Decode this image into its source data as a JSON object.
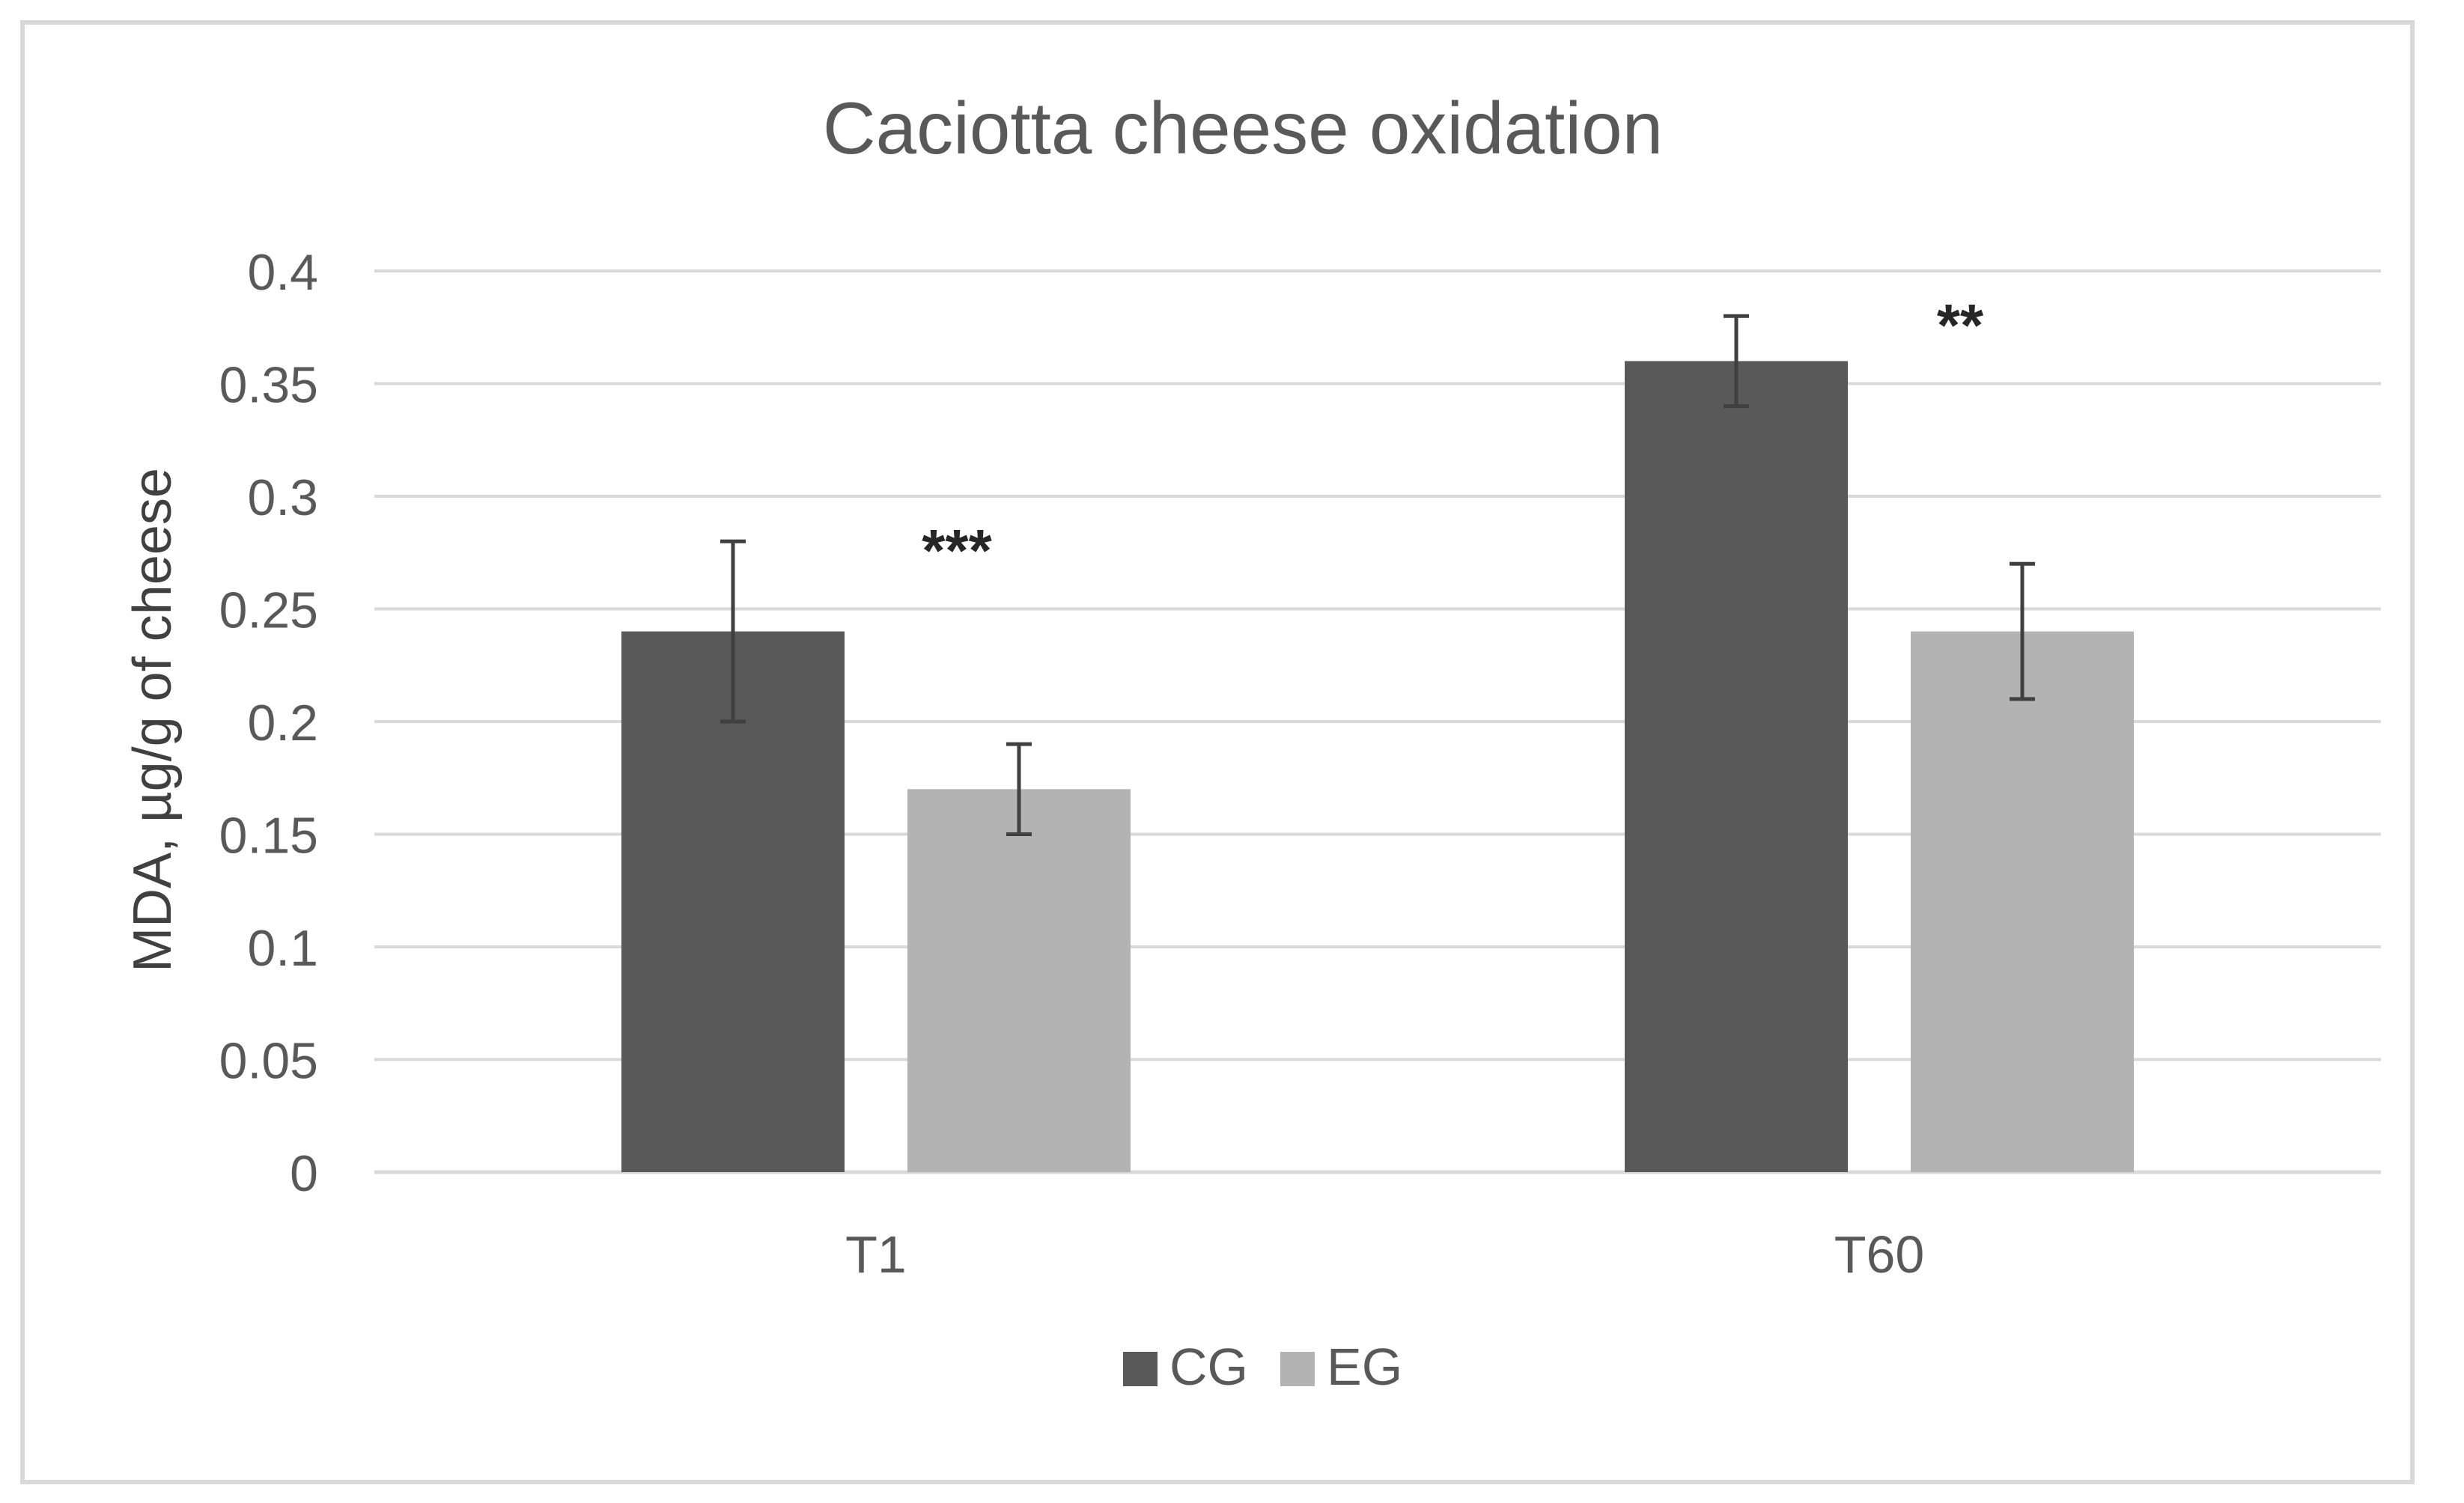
{
  "chart_data": {
    "type": "bar",
    "title": "Caciotta cheese oxidation",
    "xlabel": "",
    "ylabel": "MDA, µg/g of cheese",
    "categories": [
      "T1",
      "T60"
    ],
    "ylim": [
      0,
      0.4
    ],
    "yticks": [
      0,
      0.05,
      0.1,
      0.15,
      0.2,
      0.25,
      0.3,
      0.35,
      0.4
    ],
    "ytick_labels": [
      "0",
      "0.05",
      "0.1",
      "0.15",
      "0.2",
      "0.25",
      "0.3",
      "0.35",
      "0.4"
    ],
    "series": [
      {
        "name": "CG",
        "color": "#595959",
        "values": [
          0.24,
          0.36
        ],
        "errors": [
          0.04,
          0.02
        ]
      },
      {
        "name": "EG",
        "color": "#b3b3b3",
        "values": [
          0.17,
          0.24
        ],
        "errors": [
          0.02,
          0.03
        ]
      }
    ],
    "annotations": [
      {
        "text": "***",
        "category": "T1"
      },
      {
        "text": "**",
        "category": "T60"
      }
    ],
    "grid": true,
    "legend": "bottom-center"
  }
}
